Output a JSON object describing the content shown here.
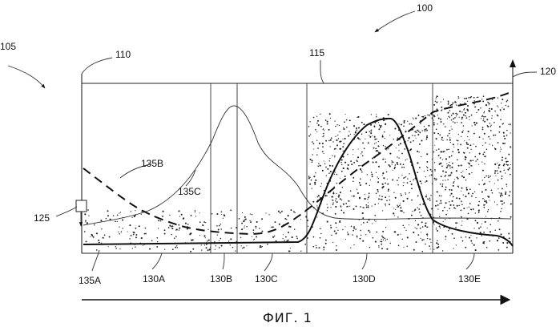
{
  "labels": {
    "ref_100": "100",
    "ref_105": "105",
    "ref_110": "110",
    "ref_115": "115",
    "ref_120": "120",
    "ref_125": "125",
    "ref_135a": "135A",
    "ref_135b": "135B",
    "ref_135c": "135C",
    "ref_130a": "130A",
    "ref_130b": "130B",
    "ref_130c": "130C",
    "ref_130d": "130D",
    "ref_130e": "130E"
  },
  "caption": "ФИГ. 1"
}
